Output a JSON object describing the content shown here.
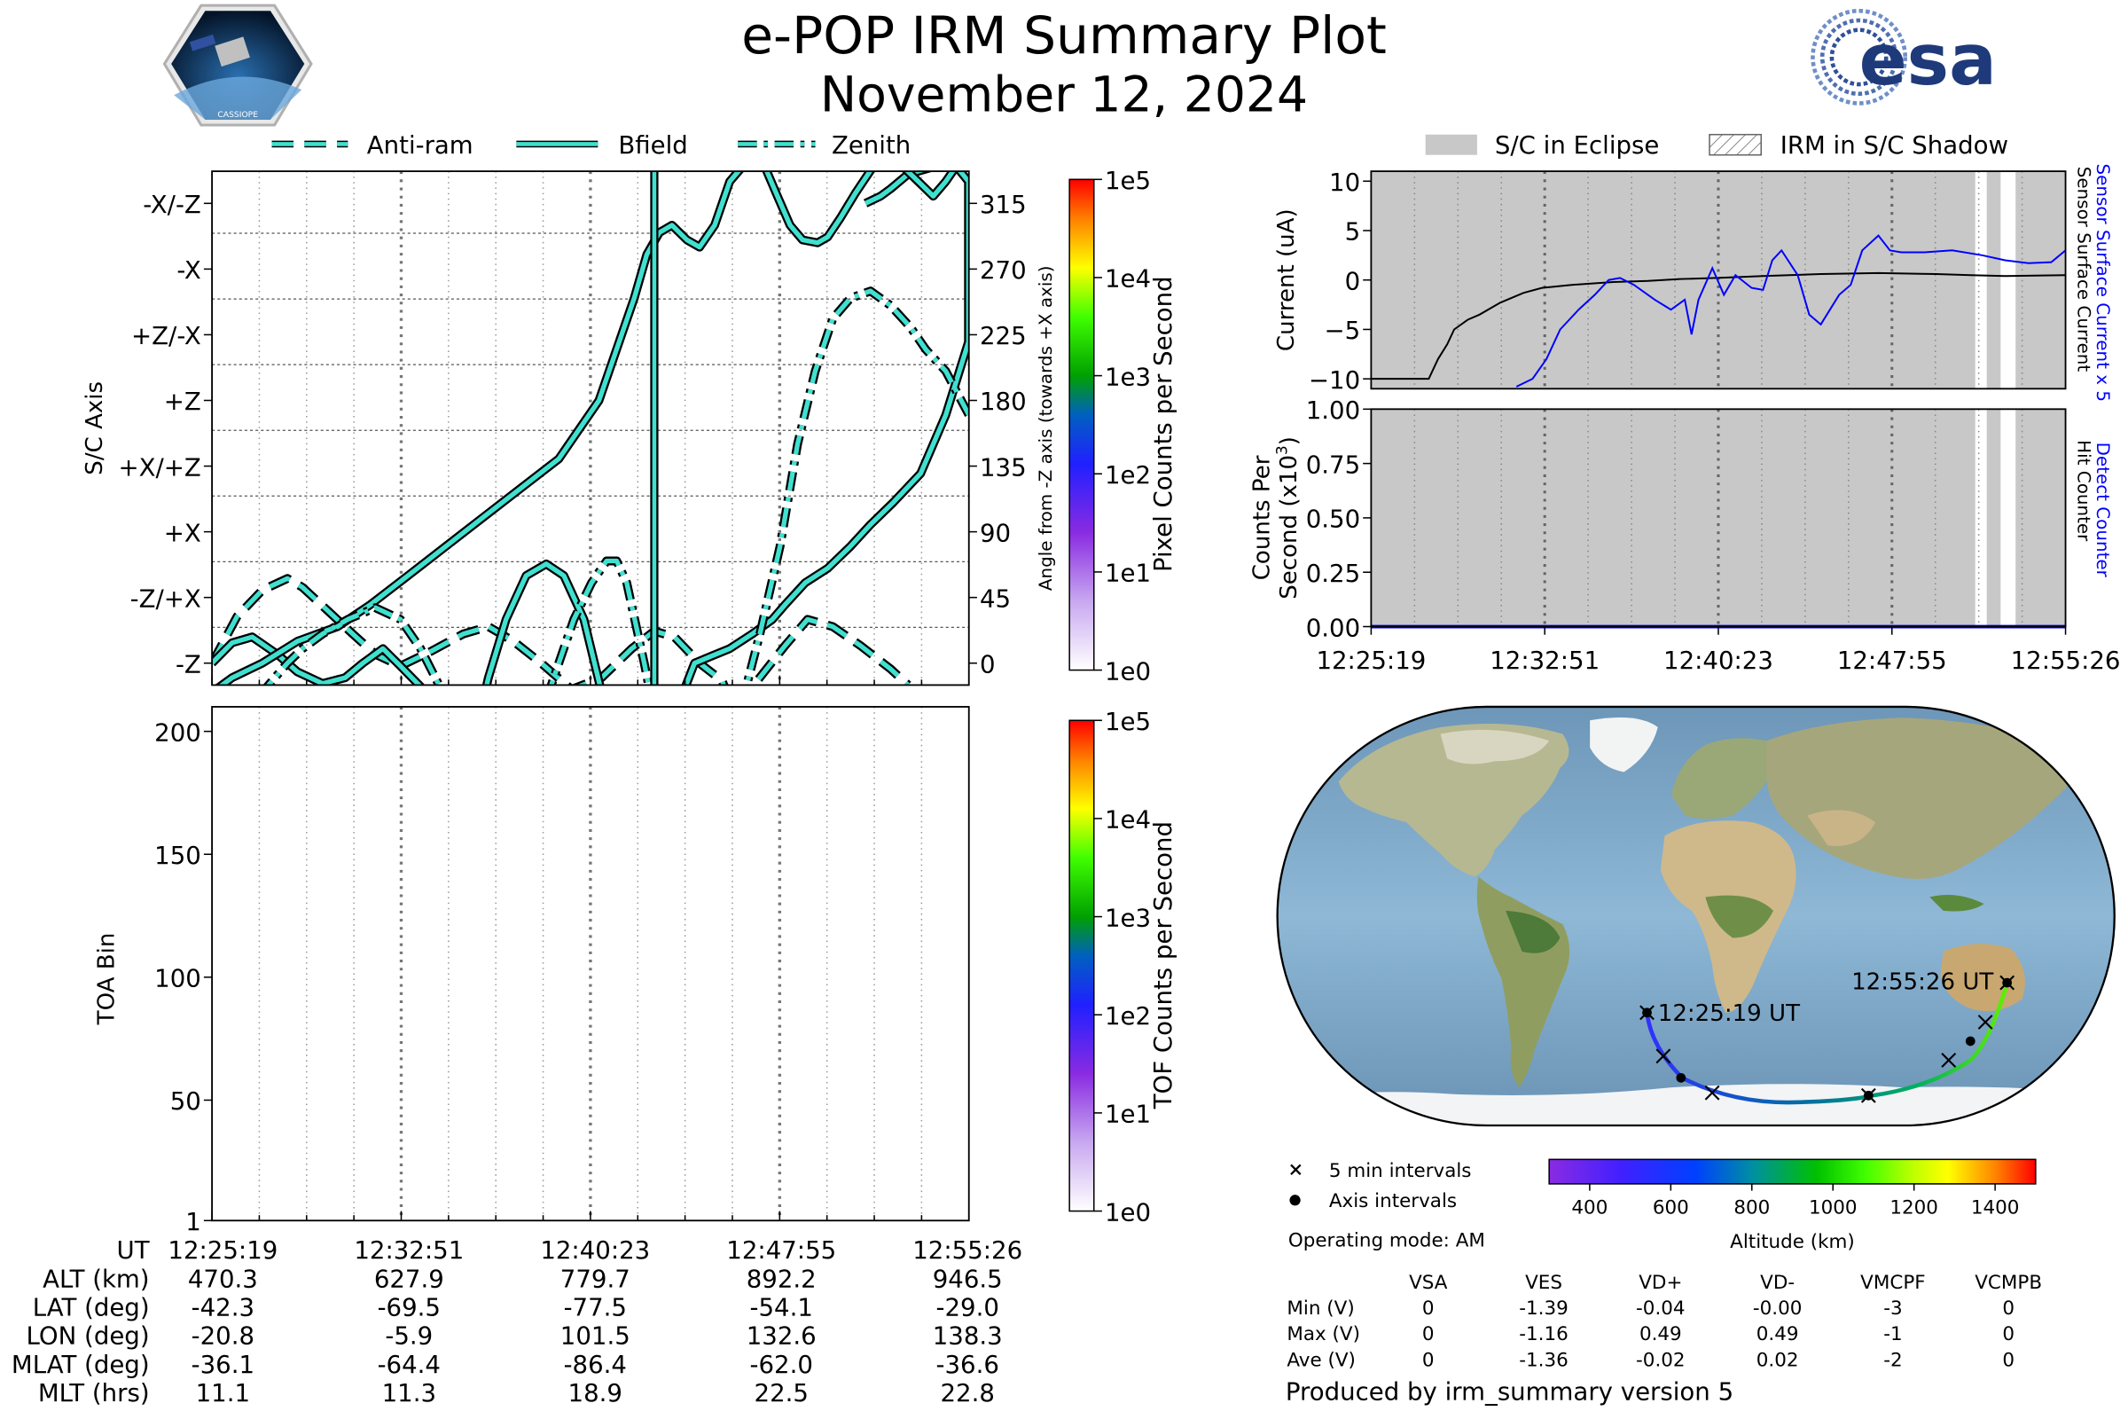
{
  "header": {
    "title": "e-POP IRM Summary Plot",
    "date": "November 12, 2024",
    "cassiope_logo_text": "CASSIOPE",
    "esa_logo_text": "esa"
  },
  "colors": {
    "curve_fill": "#40e0d0",
    "curve_outline": "#000000",
    "eclipse_gray": "#c8c8c8",
    "detect_counter": "#0000ff",
    "surface_current": "#000000",
    "sensor_current": "#0000ff"
  },
  "chart_data": [
    {
      "id": "sc-axis",
      "type": "line",
      "legend": [
        "Anti-ram",
        "Bfield",
        "Zenith"
      ],
      "legend_styles": [
        "dashed",
        "solid",
        "dash-dot"
      ],
      "ylabel": "S/C Axis",
      "ylabel_right": "Angle from -Z axis (towards +X axis)",
      "y_tick_labels": [
        "-Z",
        "-Z/+X",
        "+X",
        "+X/+Z",
        "+Z",
        "+Z/-X",
        "-X",
        "-X/-Z"
      ],
      "y_tick_values": [
        0,
        45,
        90,
        135,
        180,
        225,
        270,
        315
      ],
      "right_tick_labels": [
        "0",
        "45",
        "90",
        "135",
        "180",
        "225",
        "270",
        "315"
      ],
      "ylim": [
        -15,
        337
      ],
      "xlim_minutes": [
        0,
        30.117
      ],
      "series": [
        {
          "name": "Anti-ram",
          "style": "dashed",
          "x": [
            0,
            1,
            2,
            3,
            3.6,
            4.6,
            5.6,
            6.5,
            7.5,
            8.7,
            10,
            11,
            12,
            13.1,
            14.3,
            15.5,
            16.7,
            17.6,
            18.4,
            19.4,
            20.3,
            20.7,
            21.7,
            22.8,
            23.7,
            24.7,
            25.8,
            27,
            27.7
          ],
          "y": [
            0,
            32,
            50,
            58,
            52,
            36,
            20,
            6,
            -2,
            8,
            20,
            25,
            15,
            0,
            -18,
            -10,
            10,
            22,
            18,
            0,
            -12,
            -30,
            -12,
            12,
            30,
            25,
            12,
            -4,
            -15
          ]
        },
        {
          "name": "Bfield",
          "style": "solid",
          "x": [
            0,
            0.8,
            1.6,
            2.6,
            3.4,
            4.4,
            5.3,
            6,
            6.8,
            7.5,
            8.3,
            9,
            9.9,
            10.6,
            11,
            11.7,
            12.5,
            13.3,
            14,
            14.8,
            15.5,
            16.3,
            17.2,
            18.3,
            19.2,
            19.9,
            20.6,
            21.5,
            22.3,
            22.8,
            23.6,
            24.5,
            25.4,
            26.2,
            27.1,
            28.2,
            29.2,
            30.1,
            30.1,
            29.4,
            28.7,
            27.7,
            27,
            26.6,
            26
          ],
          "y": [
            0,
            14,
            18,
            6,
            -6,
            -14,
            -10,
            0,
            10,
            -2,
            -16,
            -40,
            -60,
            -40,
            -10,
            30,
            60,
            68,
            60,
            30,
            -20,
            -60,
            -100,
            -40,
            0,
            5,
            10,
            20,
            30,
            40,
            55,
            65,
            80,
            95,
            110,
            130,
            170,
            220,
            330,
            345,
            340,
            335,
            325,
            320,
            315
          ],
          "x2": [
            0,
            0.8,
            2,
            3.4,
            5,
            6.3,
            7.8,
            9.3,
            10.8,
            12.3,
            13.8,
            15.4,
            16.8,
            17.3,
            17.8,
            18.3,
            18.6,
            18.9,
            19.4,
            20,
            20.6,
            21.1,
            21.6,
            22,
            22.5,
            23,
            23.5,
            24.1,
            24.5,
            25,
            25.6,
            26.3,
            27,
            27.5,
            28.1,
            28.7,
            29.2,
            29.6,
            30.117
          ],
          "y2": [
            -20,
            -10,
            0,
            15,
            25,
            40,
            60,
            80,
            100,
            120,
            140,
            180,
            250,
            280,
            295,
            300,
            295,
            290,
            285,
            300,
            330,
            340,
            342,
            340,
            320,
            300,
            290,
            288,
            292,
            305,
            322,
            340,
            342,
            340,
            330,
            320,
            330,
            340,
            345
          ]
        },
        {
          "name": "Zenith",
          "style": "dash-dot",
          "x": [
            0,
            1,
            2,
            3,
            3.6,
            4.4,
            5.4,
            6.5,
            7.5,
            8.3,
            9,
            10,
            11,
            12,
            12.8,
            13.6,
            14.4,
            15.1,
            15.7,
            16.1,
            16.5,
            17.2,
            18,
            18.4,
            18.6,
            19.3,
            20.3,
            21.2,
            21.8,
            22.6,
            23.3,
            24,
            24.7,
            25.4,
            26.2,
            27,
            27.8,
            28.4,
            29.2,
            30.117
          ],
          "y": [
            -60,
            -45,
            -20,
            0,
            10,
            20,
            30,
            38,
            30,
            10,
            -14,
            -45,
            -62,
            -70,
            -52,
            -10,
            30,
            55,
            70,
            70,
            55,
            0,
            -70,
            -150,
            -170,
            -140,
            -60,
            -20,
            20,
            80,
            150,
            200,
            236,
            250,
            255,
            245,
            230,
            215,
            200,
            170
          ]
        }
      ]
    },
    {
      "id": "toa",
      "type": "heatmap",
      "ylabel": "TOA Bin",
      "yticks": [
        1,
        50,
        100,
        150,
        200
      ],
      "ylim": [
        1,
        210
      ],
      "xlim_minutes": [
        0,
        30.117
      ],
      "values": "empty"
    },
    {
      "id": "current",
      "type": "line",
      "legend": [
        "S/C in Eclipse",
        "IRM in S/C Shadow"
      ],
      "ylabel": "Current (uA)",
      "ylabel_right_1": "Sensor Surface Current x 5",
      "ylabel_right_2": "Sensor Surface Current",
      "yticks": [
        -10,
        -5,
        0,
        5,
        10
      ],
      "ylim": [
        -11,
        11
      ],
      "xlim_minutes": [
        0,
        30.117
      ],
      "eclipse_spans_minutes": [
        [
          0,
          26.2
        ],
        [
          26.7,
          27.3
        ],
        [
          27.95,
          30.117
        ]
      ],
      "series": [
        {
          "name": "Sensor Surface Current",
          "color": "black",
          "x": [
            0,
            2.5,
            2.9,
            3.3,
            3.6,
            4.2,
            4.7,
            5.6,
            6.6,
            7.4,
            8.7,
            10.5,
            12,
            13.4,
            15,
            17,
            19.5,
            22,
            24.5,
            26,
            27.5,
            30.117
          ],
          "y": [
            -10,
            -10,
            -8,
            -6.5,
            -5,
            -4,
            -3.5,
            -2.3,
            -1.3,
            -0.8,
            -0.5,
            -0.2,
            -0.1,
            0.1,
            0.2,
            0.4,
            0.6,
            0.7,
            0.6,
            0.5,
            0.4,
            0.5
          ]
        },
        {
          "name": "Sensor Surface Current x 5",
          "color": "blue",
          "x": [
            6.3,
            7,
            7.6,
            8.2,
            9,
            9.7,
            10.3,
            10.8,
            11.4,
            12.3,
            13,
            13.6,
            13.9,
            14.2,
            14.8,
            15.3,
            15.8,
            16.5,
            17,
            17.4,
            17.8,
            18.5,
            19,
            19.5,
            20.3,
            20.8,
            21.3,
            22,
            22.5,
            23,
            24,
            25.2,
            26.5,
            27.5,
            28.5,
            29.5,
            30.117
          ],
          "y": [
            -10.8,
            -10,
            -8,
            -5,
            -3,
            -1.5,
            0,
            0.2,
            -0.5,
            -2,
            -3,
            -2,
            -5.5,
            -2,
            1.2,
            -1.5,
            0.5,
            -0.8,
            -1,
            2,
            3,
            0.5,
            -3.5,
            -4.5,
            -1.5,
            -0.5,
            3,
            4.5,
            3,
            2.8,
            2.8,
            3,
            2.5,
            2,
            1.7,
            1.8,
            3
          ]
        }
      ]
    },
    {
      "id": "counts",
      "type": "line",
      "ylabel": "Counts Per Second (x10^3)",
      "ylabel_display": "Counts Per",
      "ylabel_display2": "Second (x10",
      "ylabel_right_1": "Detect Counter",
      "ylabel_right_2": "Hit Counter",
      "ytick_labels": [
        "0.00",
        "0.25",
        "0.50",
        "0.75",
        "1.00"
      ],
      "yticks": [
        0,
        0.25,
        0.5,
        0.75,
        1.0
      ],
      "ylim": [
        0,
        1
      ],
      "xlim_minutes": [
        0,
        30.117
      ],
      "x_tick_labels": [
        "12:25:19",
        "12:32:51",
        "12:40:23",
        "12:47:55",
        "12:55:26"
      ],
      "series": [
        {
          "name": "Detect Counter",
          "color": "blue",
          "x": [
            0,
            30.117
          ],
          "y": [
            0,
            0
          ]
        }
      ]
    }
  ],
  "colorbars": {
    "pixel": {
      "label": "Pixel Counts per Second",
      "ticks": [
        "1e0",
        "1e1",
        "1e2",
        "1e3",
        "1e4",
        "1e5"
      ]
    },
    "tof": {
      "label": "TOF Counts per Second",
      "ticks": [
        "1e0",
        "1e1",
        "1e2",
        "1e3",
        "1e4",
        "1e5"
      ]
    },
    "altitude": {
      "label": "Altitude (km)",
      "ticks": [
        "400",
        "600",
        "800",
        "1000",
        "1200",
        "1400"
      ],
      "range": [
        300,
        1500
      ]
    }
  },
  "orbit_table": {
    "ut": {
      "label": "UT",
      "values": [
        "12:25:19",
        "12:32:51",
        "12:40:23",
        "12:47:55",
        "12:55:26"
      ]
    },
    "rows": [
      {
        "label": "ALT (km)",
        "values": [
          "470.3",
          "627.9",
          "779.7",
          "892.2",
          "946.5"
        ]
      },
      {
        "label": "LAT (deg)",
        "values": [
          "-42.3",
          "-69.5",
          "-77.5",
          "-54.1",
          "-29.0"
        ]
      },
      {
        "label": "LON (deg)",
        "values": [
          "-20.8",
          "-5.9",
          "101.5",
          "132.6",
          "138.3"
        ]
      },
      {
        "label": "MLAT (deg)",
        "values": [
          "-36.1",
          "-64.4",
          "-86.4",
          "-62.0",
          "-36.6"
        ]
      },
      {
        "label": "MLT (hrs)",
        "values": [
          "11.1",
          "11.3",
          "18.9",
          "22.5",
          "22.8"
        ]
      }
    ]
  },
  "map": {
    "start_label": "12:25:19 UT",
    "end_label": "12:55:26 UT",
    "legend_5min": "5 min intervals",
    "legend_axis": "Axis intervals",
    "operating_mode": "Operating mode: AM"
  },
  "voltage_table": {
    "columns": [
      "VSA",
      "VES",
      "VD+",
      "VD-",
      "VMCPF",
      "VCMPB"
    ],
    "rows": [
      {
        "label": "Min (V)",
        "values": [
          "0",
          "-1.39",
          "-0.04",
          "-0.00",
          "-3",
          "0"
        ]
      },
      {
        "label": "Max (V)",
        "values": [
          "0",
          "-1.16",
          "0.49",
          "0.49",
          "-1",
          "0"
        ]
      },
      {
        "label": "Ave (V)",
        "values": [
          "0",
          "-1.36",
          "-0.02",
          "0.02",
          "-2",
          "0"
        ]
      }
    ]
  },
  "footer": "Produced by irm_summary version 5"
}
